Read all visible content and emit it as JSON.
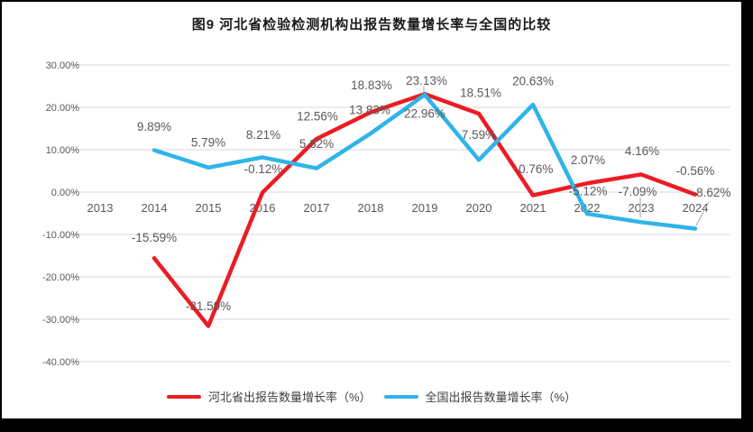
{
  "title": "图9 河北省检验检测机构出报告数量增长率与全国的比较",
  "chart_data": {
    "type": "line",
    "categories": [
      "2013",
      "2014",
      "2015",
      "2016",
      "2017",
      "2018",
      "2019",
      "2020",
      "2021",
      "2022",
      "2023",
      "2024"
    ],
    "series": [
      {
        "name": "河北省出报告数量增长率（%）",
        "color": "#EC1C24",
        "values": [
          null,
          -15.59,
          -31.59,
          -0.12,
          12.56,
          18.83,
          23.13,
          18.51,
          -0.76,
          2.07,
          4.16,
          -0.56
        ],
        "labels": [
          "",
          "-15.59%",
          "-31.59%",
          "-0.12%",
          "12.56%",
          "18.83%",
          "23.13%",
          "18.51%",
          "-0.76%",
          "2.07%",
          "4.16%",
          "-0.56%"
        ]
      },
      {
        "name": "全国出报告数量增长率（%）",
        "color": "#2FB4E9",
        "values": [
          null,
          9.89,
          5.79,
          8.21,
          5.62,
          13.83,
          22.96,
          7.59,
          20.63,
          -5.12,
          -7.09,
          -8.62
        ],
        "labels": [
          "",
          "9.89%",
          "5.79%",
          "8.21%",
          "5.62%",
          "13.83%",
          "22.96%",
          "7.59%",
          "20.63%",
          "-5.12%",
          "-7.09%",
          "-8.62%"
        ]
      }
    ],
    "y_tick_values": [
      30,
      20,
      10,
      0,
      -10,
      -20,
      -30,
      -40
    ],
    "y_tick_labels": [
      "30.00%",
      "20.00%",
      "10.00%",
      "0.00%",
      "-10.00%",
      "-20.00%",
      "-30.00%",
      "-40.00%"
    ],
    "ylim": [
      -40,
      30
    ],
    "grid": true,
    "data_labels": true,
    "legend_position": "bottom",
    "colors": {
      "gridline": "#D9D9D9",
      "axis_text": "#595959",
      "data_label_text": "#595959",
      "leader_line": "#A6A6A6",
      "title_text": "#1a1a1a"
    }
  },
  "legend": {
    "items": [
      {
        "label": "河北省出报告数量增长率（%）",
        "color": "#EC1C24"
      },
      {
        "label": "全国出报告数量增长率（%）",
        "color": "#2FB4E9"
      }
    ]
  }
}
